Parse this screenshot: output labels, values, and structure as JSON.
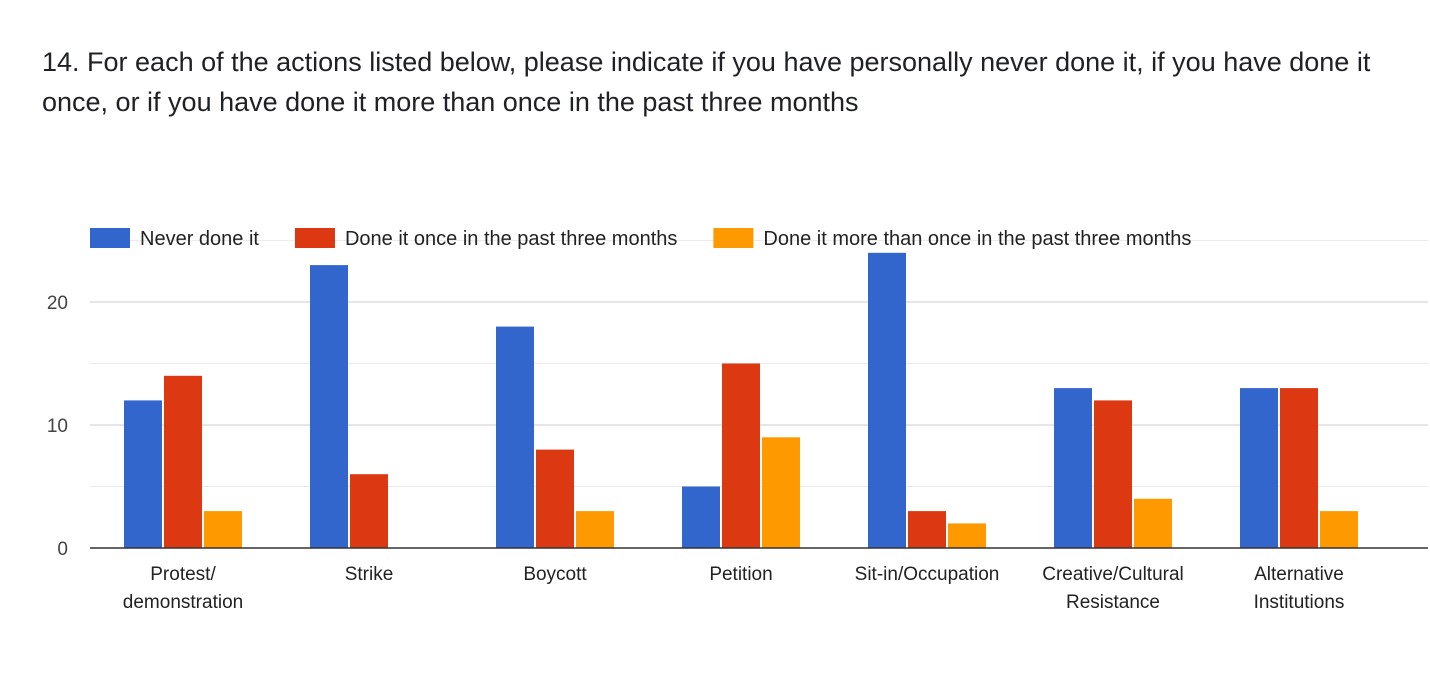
{
  "question": {
    "title": "14. For each of the actions listed below, please indicate if you have personally never done it, if you have done it once, or if you have done it more than once in the past three months"
  },
  "chart_data": {
    "type": "bar",
    "title": "",
    "xlabel": "",
    "ylabel": "",
    "ylim": [
      0,
      25
    ],
    "yticks": [
      0,
      10,
      20
    ],
    "grid": true,
    "legend_position": "top-left",
    "categories": [
      [
        "Protest/",
        "demonstration"
      ],
      [
        "Strike"
      ],
      [
        "Boycott"
      ],
      [
        "Petition"
      ],
      [
        "Sit-in/Occupation"
      ],
      [
        "Creative/Cultural",
        "Resistance"
      ],
      [
        "Alternative",
        "Institutions"
      ]
    ],
    "series": [
      {
        "name": "Never done it",
        "color": "#3366cc",
        "values": [
          12,
          23,
          18,
          5,
          24,
          13,
          13
        ]
      },
      {
        "name": "Done it once in the past three months",
        "color": "#dc3912",
        "values": [
          14,
          6,
          8,
          15,
          3,
          12,
          13
        ]
      },
      {
        "name": "Done it more than once in the past three months",
        "color": "#ff9900",
        "values": [
          3,
          0,
          3,
          9,
          2,
          4,
          3
        ]
      }
    ]
  }
}
